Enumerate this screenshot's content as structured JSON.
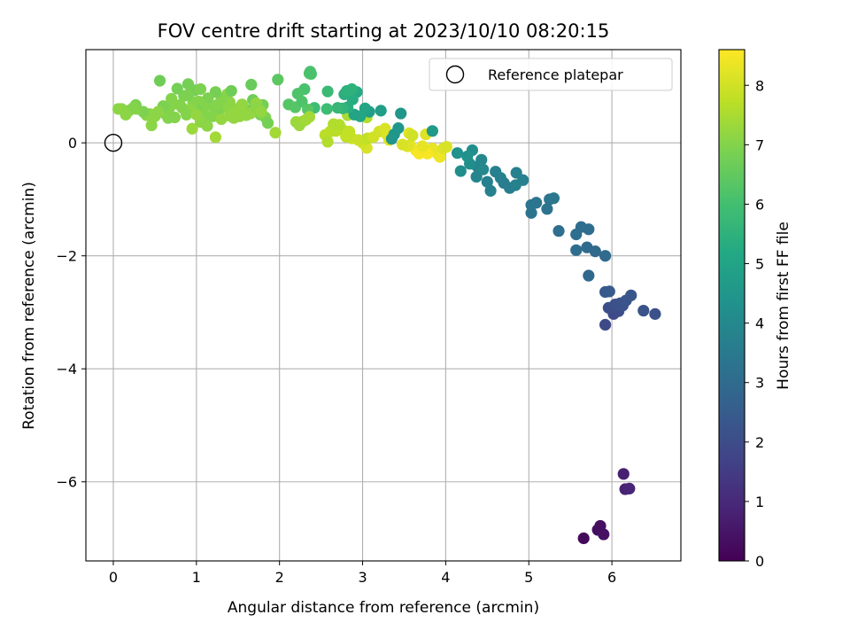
{
  "chart_data": {
    "type": "scatter",
    "title": "FOV centre drift starting at 2023/10/10 08:20:15",
    "xlabel": "Angular distance from reference (arcmin)",
    "ylabel": "Rotation from reference (arcmin)",
    "xlim": [
      -0.33,
      6.83
    ],
    "ylim": [
      -7.4,
      1.65
    ],
    "x_ticks": [
      0,
      1,
      2,
      3,
      4,
      5,
      6
    ],
    "y_ticks": [
      -6,
      -4,
      -2,
      0
    ],
    "x_tick_labels": [
      "0",
      "1",
      "2",
      "3",
      "4",
      "5",
      "6"
    ],
    "y_tick_labels": [
      "−6",
      "−4",
      "−2",
      "0"
    ],
    "grid": true,
    "legend": {
      "placement": "top-right",
      "entries": [
        {
          "label": "Reference platepar",
          "marker": "open-circle"
        }
      ]
    },
    "reference_point": {
      "x": 0,
      "y": 0
    },
    "colorbar": {
      "label": "Hours from first FF file",
      "range": [
        0,
        8.6
      ],
      "ticks": [
        0,
        1,
        2,
        3,
        4,
        5,
        6,
        7,
        8
      ],
      "tick_labels": [
        "0",
        "1",
        "2",
        "3",
        "4",
        "5",
        "6",
        "7",
        "8"
      ],
      "colormap": "viridis"
    },
    "points": [
      [
        5.66,
        -7.0,
        0.2
      ],
      [
        5.83,
        -6.85,
        0.3
      ],
      [
        5.86,
        -6.78,
        0.35
      ],
      [
        5.9,
        -6.93,
        0.4
      ],
      [
        6.14,
        -5.86,
        0.75
      ],
      [
        6.16,
        -6.13,
        0.8
      ],
      [
        6.21,
        -6.12,
        0.9
      ],
      [
        5.92,
        -3.22,
        1.9
      ],
      [
        6.02,
        -3.03,
        1.95
      ],
      [
        6.08,
        -2.98,
        2.0
      ],
      [
        5.96,
        -2.92,
        2.05
      ],
      [
        6.04,
        -2.86,
        2.1
      ],
      [
        6.1,
        -2.84,
        2.15
      ],
      [
        6.13,
        -2.88,
        2.2
      ],
      [
        6.17,
        -2.79,
        2.25
      ],
      [
        6.23,
        -2.7,
        2.3
      ],
      [
        6.38,
        -2.97,
        2.2
      ],
      [
        6.52,
        -3.03,
        2.1
      ],
      [
        5.92,
        -2.64,
        2.4
      ],
      [
        5.97,
        -2.63,
        2.45
      ],
      [
        5.72,
        -2.35,
        2.9
      ],
      [
        5.8,
        -1.92,
        2.95
      ],
      [
        5.92,
        -2.0,
        3.0
      ],
      [
        5.7,
        -1.85,
        3.0
      ],
      [
        5.57,
        -1.9,
        3.05
      ],
      [
        5.72,
        -1.53,
        3.05
      ],
      [
        5.63,
        -1.49,
        3.05
      ],
      [
        5.57,
        -1.62,
        3.1
      ],
      [
        5.36,
        -1.56,
        3.1
      ],
      [
        5.03,
        -1.24,
        3.3
      ],
      [
        5.03,
        -1.1,
        3.35
      ],
      [
        5.09,
        -1.06,
        3.35
      ],
      [
        5.22,
        -1.17,
        3.3
      ],
      [
        5.25,
        -1.0,
        3.35
      ],
      [
        5.3,
        -0.98,
        3.4
      ],
      [
        4.77,
        -0.8,
        3.6
      ],
      [
        4.93,
        -0.66,
        3.7
      ],
      [
        4.84,
        -0.75,
        3.7
      ],
      [
        4.85,
        -0.53,
        3.7
      ],
      [
        4.7,
        -0.71,
        3.6
      ],
      [
        4.66,
        -0.62,
        3.7
      ],
      [
        4.6,
        -0.51,
        3.7
      ],
      [
        4.54,
        -0.85,
        3.7
      ],
      [
        4.5,
        -0.69,
        3.7
      ],
      [
        4.38,
        -0.42,
        3.9
      ],
      [
        4.37,
        -0.6,
        3.9
      ],
      [
        4.43,
        -0.3,
        3.95
      ],
      [
        4.45,
        -0.47,
        4.0
      ],
      [
        4.32,
        -0.13,
        4.2
      ],
      [
        4.29,
        -0.37,
        4.2
      ],
      [
        4.18,
        -0.5,
        4.2
      ],
      [
        4.26,
        -0.24,
        4.3
      ],
      [
        4.14,
        -0.18,
        4.3
      ],
      [
        3.93,
        -0.25,
        8.4
      ],
      [
        3.9,
        -0.19,
        8.4
      ],
      [
        3.84,
        -0.1,
        8.3
      ],
      [
        3.97,
        -0.1,
        8.2
      ],
      [
        4.01,
        -0.07,
        8.1
      ],
      [
        3.76,
        -0.15,
        8.4
      ],
      [
        3.78,
        -0.19,
        8.5
      ],
      [
        3.64,
        -0.13,
        8.5
      ],
      [
        3.68,
        -0.19,
        8.5
      ],
      [
        3.72,
        -0.06,
        8.3
      ],
      [
        3.57,
        -0.04,
        8.3
      ],
      [
        3.54,
        -0.06,
        8.2
      ],
      [
        3.48,
        -0.03,
        8.1
      ],
      [
        3.76,
        0.15,
        8.2
      ],
      [
        3.56,
        0.17,
        8.2
      ],
      [
        3.6,
        0.13,
        8.0
      ],
      [
        3.05,
        -0.09,
        8.1
      ],
      [
        3.0,
        0.0,
        8.0
      ],
      [
        2.95,
        0.05,
        7.9
      ],
      [
        3.06,
        0.08,
        7.8
      ],
      [
        2.87,
        0.08,
        7.9
      ],
      [
        2.8,
        0.11,
        7.8
      ],
      [
        2.84,
        0.2,
        7.8
      ],
      [
        2.76,
        0.23,
        7.8
      ],
      [
        2.68,
        0.21,
        7.7
      ],
      [
        2.61,
        0.2,
        7.7
      ],
      [
        2.55,
        0.14,
        7.7
      ],
      [
        2.58,
        0.02,
        7.6
      ],
      [
        2.72,
        0.32,
        7.6
      ],
      [
        2.65,
        0.33,
        7.6
      ],
      [
        2.82,
        0.49,
        7.5
      ],
      [
        3.05,
        0.45,
        7.6
      ],
      [
        3.13,
        0.1,
        8.0
      ],
      [
        3.2,
        0.2,
        8.0
      ],
      [
        3.27,
        0.25,
        8.1
      ],
      [
        3.3,
        0.13,
        8.2
      ],
      [
        3.32,
        0.05,
        8.2
      ],
      [
        3.35,
        0.07,
        4.4
      ],
      [
        3.38,
        0.15,
        4.5
      ],
      [
        3.43,
        0.26,
        4.5
      ],
      [
        3.46,
        0.52,
        4.5
      ],
      [
        3.22,
        0.57,
        4.8
      ],
      [
        3.08,
        0.55,
        4.8
      ],
      [
        3.03,
        0.61,
        5.0
      ],
      [
        3.84,
        0.21,
        4.6
      ],
      [
        2.97,
        0.47,
        5.1
      ],
      [
        2.9,
        0.5,
        5.0
      ],
      [
        2.93,
        0.9,
        5.2
      ],
      [
        2.88,
        0.77,
        5.3
      ],
      [
        2.82,
        0.63,
        5.4
      ],
      [
        2.78,
        0.86,
        5.4
      ],
      [
        2.81,
        0.92,
        5.5
      ],
      [
        2.87,
        0.95,
        5.5
      ],
      [
        2.76,
        0.61,
        5.6
      ],
      [
        2.7,
        0.62,
        5.7
      ],
      [
        2.58,
        0.91,
        5.8
      ],
      [
        2.42,
        0.62,
        5.9
      ],
      [
        2.57,
        0.6,
        5.9
      ],
      [
        2.38,
        1.22,
        6.1
      ],
      [
        2.36,
        1.23,
        6.2
      ],
      [
        2.37,
        1.26,
        6.1
      ],
      [
        2.3,
        0.95,
        6.1
      ],
      [
        2.22,
        0.87,
        6.2
      ],
      [
        2.19,
        0.63,
        6.3
      ],
      [
        2.11,
        0.68,
        6.3
      ],
      [
        2.27,
        0.73,
        6.2
      ],
      [
        2.34,
        0.59,
        6.3
      ],
      [
        1.98,
        1.12,
        6.4
      ],
      [
        2.2,
        0.37,
        7.3
      ],
      [
        2.24,
        0.31,
        7.3
      ],
      [
        2.28,
        0.38,
        7.3
      ],
      [
        2.32,
        0.41,
        7.4
      ],
      [
        2.36,
        0.46,
        7.4
      ],
      [
        1.95,
        0.18,
        7.4
      ],
      [
        1.83,
        0.45,
        6.9
      ],
      [
        1.77,
        0.5,
        6.9
      ],
      [
        1.8,
        0.67,
        6.8
      ],
      [
        1.86,
        0.35,
        6.8
      ],
      [
        1.7,
        0.63,
        6.8
      ],
      [
        1.68,
        0.76,
        6.7
      ],
      [
        1.66,
        1.03,
        6.6
      ],
      [
        1.63,
        0.58,
        6.9
      ],
      [
        1.72,
        0.7,
        7.2
      ],
      [
        1.59,
        0.52,
        7.1
      ],
      [
        1.55,
        0.68,
        7.2
      ],
      [
        1.52,
        0.47,
        7.2
      ],
      [
        1.48,
        0.6,
        7.2
      ],
      [
        1.45,
        0.44,
        7.2
      ],
      [
        1.43,
        0.57,
        7.2
      ],
      [
        1.4,
        0.72,
        7.1
      ],
      [
        1.37,
        0.86,
        7.1
      ],
      [
        1.35,
        0.63,
        7.1
      ],
      [
        1.3,
        0.78,
        7.0
      ],
      [
        1.26,
        0.53,
        6.9
      ],
      [
        1.23,
        0.9,
        6.8
      ],
      [
        1.2,
        0.47,
        7.0
      ],
      [
        1.18,
        0.66,
        7.0
      ],
      [
        1.14,
        0.79,
        6.9
      ],
      [
        1.11,
        0.48,
        7.0
      ],
      [
        1.08,
        0.64,
        7.0
      ],
      [
        1.03,
        0.73,
        7.0
      ],
      [
        1.0,
        0.6,
        6.9
      ],
      [
        0.98,
        0.93,
        6.8
      ],
      [
        0.96,
        0.72,
        7.0
      ],
      [
        0.93,
        0.59,
        7.1
      ],
      [
        0.9,
        1.04,
        6.8
      ],
      [
        0.88,
        0.5,
        7.0
      ],
      [
        0.85,
        0.83,
        6.9
      ],
      [
        0.83,
        0.62,
        7.0
      ],
      [
        0.8,
        0.67,
        7.0
      ],
      [
        0.77,
        0.96,
        6.8
      ],
      [
        0.74,
        0.45,
        7.0
      ],
      [
        0.7,
        0.78,
        7.0
      ],
      [
        0.68,
        0.63,
        7.0
      ],
      [
        0.62,
        0.52,
        7.0
      ],
      [
        0.6,
        0.65,
        6.9
      ],
      [
        0.56,
        1.1,
        6.7
      ],
      [
        0.54,
        0.55,
        7.1
      ],
      [
        0.5,
        0.47,
        7.1
      ],
      [
        0.46,
        0.31,
        7.1
      ],
      [
        0.44,
        0.51,
        7.1
      ],
      [
        0.4,
        0.49,
        7.1
      ],
      [
        0.36,
        0.55,
        6.9
      ],
      [
        0.28,
        0.6,
        7.0
      ],
      [
        0.27,
        0.67,
        6.9
      ],
      [
        0.24,
        0.62,
        7.0
      ],
      [
        0.19,
        0.57,
        7.0
      ],
      [
        0.15,
        0.5,
        7.1
      ],
      [
        0.1,
        0.6,
        7.1
      ],
      [
        0.06,
        0.6,
        7.1
      ],
      [
        0.66,
        0.44,
        7.0
      ],
      [
        1.05,
        0.37,
        7.1
      ],
      [
        1.13,
        0.3,
        7.1
      ],
      [
        1.3,
        0.42,
        7.2
      ],
      [
        1.4,
        0.48,
        7.2
      ],
      [
        1.6,
        0.49,
        7.2
      ],
      [
        1.65,
        0.52,
        7.2
      ],
      [
        1.73,
        0.62,
        7.1
      ],
      [
        1.78,
        0.55,
        7.2
      ],
      [
        0.95,
        0.25,
        7.3
      ],
      [
        1.23,
        0.1,
        7.4
      ],
      [
        1.0,
        0.5,
        7.2
      ],
      [
        1.05,
        0.95,
        6.9
      ],
      [
        0.9,
        0.85,
        6.9
      ],
      [
        1.42,
        0.92,
        6.7
      ],
      [
        1.25,
        0.67,
        7.0
      ]
    ]
  }
}
